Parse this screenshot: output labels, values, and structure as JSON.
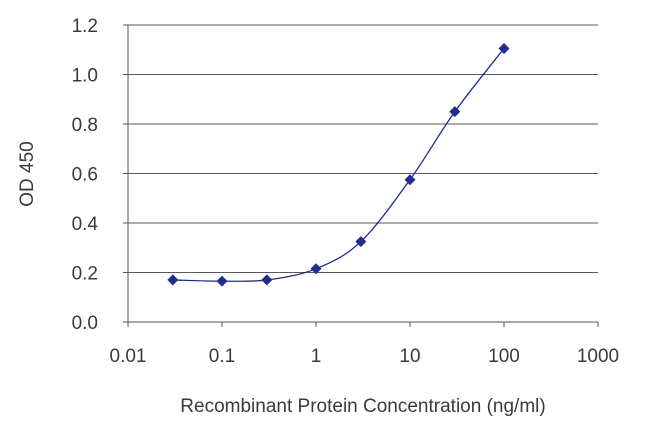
{
  "chart_data": {
    "type": "line",
    "xlabel": "Recombinant Protein Concentration (ng/ml)",
    "ylabel": "OD 450",
    "xscale": "log",
    "xlim": [
      0.01,
      1000
    ],
    "ylim": [
      0.0,
      1.2
    ],
    "xticks": [
      0.01,
      0.1,
      1,
      10,
      100,
      1000
    ],
    "xtick_labels": [
      "0.01",
      "0.1",
      "1",
      "10",
      "100",
      "1000"
    ],
    "yticks": [
      0.0,
      0.2,
      0.4,
      0.6,
      0.8,
      1.0,
      1.2
    ],
    "ytick_labels": [
      "0.0",
      "0.2",
      "0.4",
      "0.6",
      "0.8",
      "1.0",
      "1.2"
    ],
    "grid": "horizontal",
    "series": [
      {
        "color": "#1f2d8f",
        "marker": "diamond",
        "x": [
          0.03,
          0.1,
          0.3,
          1,
          3,
          10,
          30,
          100
        ],
        "y": [
          0.17,
          0.165,
          0.17,
          0.215,
          0.325,
          0.575,
          0.85,
          1.105
        ]
      }
    ]
  }
}
